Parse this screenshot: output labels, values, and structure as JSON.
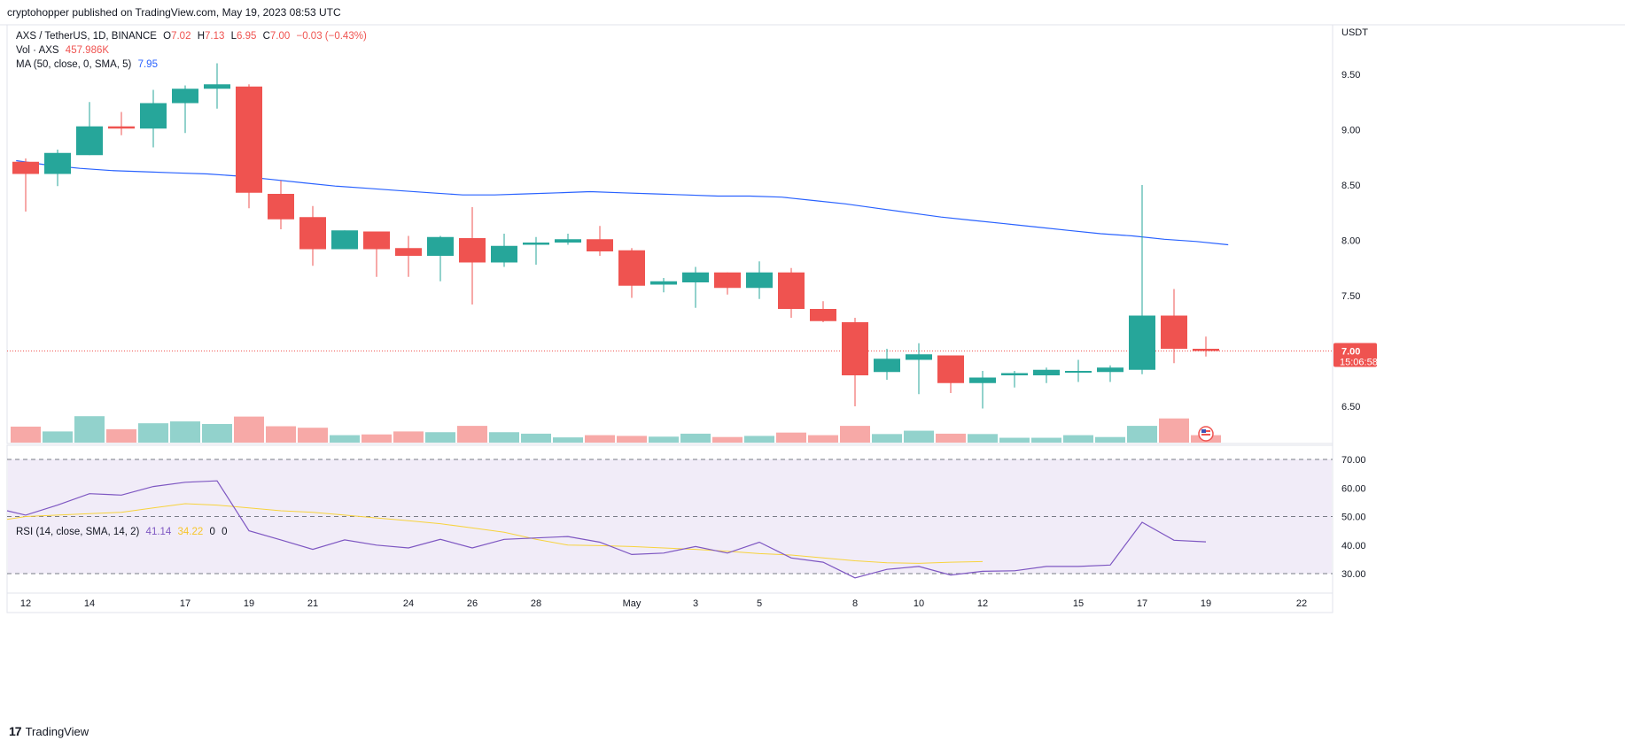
{
  "publisher": "cryptohopper published on TradingView.com, May 19, 2023 08:53 UTC",
  "brand": "TradingView",
  "colors": {
    "up": "#26a69a",
    "down": "#ef5350",
    "ma": "#2962ff",
    "rsi": "#7e57c2",
    "rsi_ma": "#f7d33d",
    "rsi_bg": "#ede7f6"
  },
  "legend": {
    "symbol": "AXS / TetherUS, 1D, BINANCE",
    "o_label": "O",
    "o": "7.02",
    "h_label": "H",
    "h": "7.13",
    "l_label": "L",
    "l": "6.95",
    "c_label": "C",
    "c": "7.00",
    "change": "−0.03 (−0.43%)",
    "vol_label": "Vol · AXS",
    "vol": "457.986K",
    "ma_label": "MA (50, close, 0, SMA, 5)",
    "ma": "7.95",
    "rsi_label": "RSI (14, close, SMA, 14, 2)",
    "rsi": "41.14",
    "rsi_ma": "34.22",
    "rsi_extra1": "0",
    "rsi_extra2": "0"
  },
  "price_axis": {
    "unit": "USDT",
    "last_price": "7.00",
    "countdown": "15:06:58"
  },
  "chart_data": [
    {
      "type": "candlestick",
      "title": "AXS / TetherUS, 1D, BINANCE",
      "ylabel": "USDT",
      "ylim": [
        6.15,
        9.95
      ],
      "yticks": [
        "9.50",
        "9.00",
        "8.50",
        "8.00",
        "7.50",
        "7.00",
        "6.50"
      ],
      "x_slot_start": 0,
      "x_slots_total": 42,
      "xticks": [
        {
          "label": "12",
          "slot": 0
        },
        {
          "label": "14",
          "slot": 2
        },
        {
          "label": "17",
          "slot": 5
        },
        {
          "label": "19",
          "slot": 7
        },
        {
          "label": "21",
          "slot": 9
        },
        {
          "label": "24",
          "slot": 12
        },
        {
          "label": "26",
          "slot": 14
        },
        {
          "label": "28",
          "slot": 16
        },
        {
          "label": "May",
          "slot": 19
        },
        {
          "label": "3",
          "slot": 21
        },
        {
          "label": "5",
          "slot": 23
        },
        {
          "label": "8",
          "slot": 26
        },
        {
          "label": "10",
          "slot": 28
        },
        {
          "label": "12",
          "slot": 30
        },
        {
          "label": "15",
          "slot": 33
        },
        {
          "label": "17",
          "slot": 35
        },
        {
          "label": "19",
          "slot": 37
        },
        {
          "label": "22",
          "slot": 40
        }
      ],
      "candles": [
        {
          "o": 8.71,
          "h": 8.74,
          "l": 8.26,
          "c": 8.6
        },
        {
          "o": 8.6,
          "h": 8.82,
          "l": 8.49,
          "c": 8.79
        },
        {
          "o": 8.77,
          "h": 9.25,
          "l": 8.77,
          "c": 9.03
        },
        {
          "o": 9.03,
          "h": 9.16,
          "l": 8.95,
          "c": 9.01
        },
        {
          "o": 9.01,
          "h": 9.36,
          "l": 8.84,
          "c": 9.24
        },
        {
          "o": 9.24,
          "h": 9.4,
          "l": 8.97,
          "c": 9.37
        },
        {
          "o": 9.37,
          "h": 9.6,
          "l": 9.19,
          "c": 9.41
        },
        {
          "o": 9.39,
          "h": 9.41,
          "l": 8.29,
          "c": 8.43
        },
        {
          "o": 8.42,
          "h": 8.54,
          "l": 8.1,
          "c": 8.19
        },
        {
          "o": 8.21,
          "h": 8.31,
          "l": 7.77,
          "c": 7.92
        },
        {
          "o": 7.92,
          "h": 8.09,
          "l": 7.92,
          "c": 8.09
        },
        {
          "o": 8.08,
          "h": 8.08,
          "l": 7.67,
          "c": 7.92
        },
        {
          "o": 7.93,
          "h": 8.04,
          "l": 7.67,
          "c": 7.86
        },
        {
          "o": 7.86,
          "h": 8.04,
          "l": 7.63,
          "c": 8.03
        },
        {
          "o": 8.02,
          "h": 8.3,
          "l": 7.42,
          "c": 7.8
        },
        {
          "o": 7.8,
          "h": 8.06,
          "l": 7.76,
          "c": 7.95
        },
        {
          "o": 7.96,
          "h": 8.03,
          "l": 7.78,
          "c": 7.98
        },
        {
          "o": 7.98,
          "h": 8.06,
          "l": 7.96,
          "c": 8.01
        },
        {
          "o": 8.01,
          "h": 8.13,
          "l": 7.86,
          "c": 7.9
        },
        {
          "o": 7.91,
          "h": 7.93,
          "l": 7.48,
          "c": 7.59
        },
        {
          "o": 7.6,
          "h": 7.66,
          "l": 7.53,
          "c": 7.63
        },
        {
          "o": 7.62,
          "h": 7.76,
          "l": 7.39,
          "c": 7.71
        },
        {
          "o": 7.71,
          "h": 7.71,
          "l": 7.51,
          "c": 7.57
        },
        {
          "o": 7.57,
          "h": 7.81,
          "l": 7.47,
          "c": 7.71
        },
        {
          "o": 7.71,
          "h": 7.75,
          "l": 7.3,
          "c": 7.38
        },
        {
          "o": 7.38,
          "h": 7.45,
          "l": 7.26,
          "c": 7.27
        },
        {
          "o": 7.26,
          "h": 7.3,
          "l": 6.5,
          "c": 6.78
        },
        {
          "o": 6.81,
          "h": 7.02,
          "l": 6.74,
          "c": 6.93
        },
        {
          "o": 6.92,
          "h": 7.07,
          "l": 6.61,
          "c": 6.97
        },
        {
          "o": 6.96,
          "h": 6.96,
          "l": 6.62,
          "c": 6.71
        },
        {
          "o": 6.71,
          "h": 6.82,
          "l": 6.48,
          "c": 6.76
        },
        {
          "o": 6.78,
          "h": 6.82,
          "l": 6.67,
          "c": 6.8
        },
        {
          "o": 6.78,
          "h": 6.85,
          "l": 6.71,
          "c": 6.83
        },
        {
          "o": 6.81,
          "h": 6.92,
          "l": 6.72,
          "c": 6.82
        },
        {
          "o": 6.81,
          "h": 6.87,
          "l": 6.72,
          "c": 6.85
        },
        {
          "o": 6.83,
          "h": 8.5,
          "l": 6.79,
          "c": 7.32
        },
        {
          "o": 7.32,
          "h": 7.56,
          "l": 6.89,
          "c": 7.02
        },
        {
          "o": 7.02,
          "h": 7.13,
          "l": 6.95,
          "c": 7.0
        }
      ],
      "ma50": [
        8.72,
        8.68,
        8.65,
        8.63,
        8.62,
        8.61,
        8.6,
        8.58,
        8.55,
        8.52,
        8.49,
        8.47,
        8.45,
        8.43,
        8.41,
        8.41,
        8.42,
        8.43,
        8.44,
        8.43,
        8.42,
        8.41,
        8.4,
        8.4,
        8.39,
        8.36,
        8.33,
        8.29,
        8.25,
        8.21,
        8.18,
        8.15,
        8.12,
        8.09,
        8.06,
        8.04,
        8.01,
        7.99,
        7.96
      ],
      "ma50_start_slot": -0.3,
      "volume": [
        0.43,
        0.3,
        0.71,
        0.36,
        0.52,
        0.57,
        0.5,
        0.7,
        0.44,
        0.4,
        0.2,
        0.22,
        0.3,
        0.28,
        0.45,
        0.28,
        0.24,
        0.14,
        0.2,
        0.18,
        0.16,
        0.24,
        0.15,
        0.18,
        0.27,
        0.2,
        0.45,
        0.23,
        0.32,
        0.24,
        0.23,
        0.13,
        0.13,
        0.2,
        0.15,
        0.45,
        0.65,
        0.2
      ],
      "volume_label": "457.986K"
    },
    {
      "type": "line",
      "title": "RSI (14, close, SMA, 14, 2)",
      "ylim": [
        26,
        72.5
      ],
      "yticks": [
        "70.00",
        "60.00",
        "50.00",
        "40.00",
        "30.00"
      ],
      "bands": {
        "upper": 70,
        "middle": 50,
        "lower": 30
      },
      "series": [
        {
          "name": "RSI",
          "values": [
            52,
            50.5,
            54,
            58,
            57.5,
            60.5,
            62,
            62.5,
            45,
            41.8,
            38.5,
            41.8,
            40,
            39,
            42,
            39,
            42,
            42.5,
            43,
            41,
            36.7,
            37.2,
            39.5,
            37.2,
            41,
            35.5,
            34,
            28.5,
            31.5,
            32.5,
            29.5,
            30.8,
            31,
            32.5,
            32.5,
            33,
            48,
            41.7,
            41.14
          ],
          "start_slot": -1
        },
        {
          "name": "RSI-based MA",
          "values": [
            49,
            50,
            50.5,
            51,
            51.5,
            53,
            54.5,
            54,
            53,
            52,
            51.5,
            50.5,
            49.5,
            48.5,
            47.5,
            46,
            44.5,
            42,
            40,
            39.8,
            39.5,
            39,
            38.5,
            37.8,
            37,
            36.5,
            35.5,
            34.5,
            33.8,
            33.6,
            34,
            34.22
          ],
          "start_slot": -1
        }
      ]
    }
  ]
}
